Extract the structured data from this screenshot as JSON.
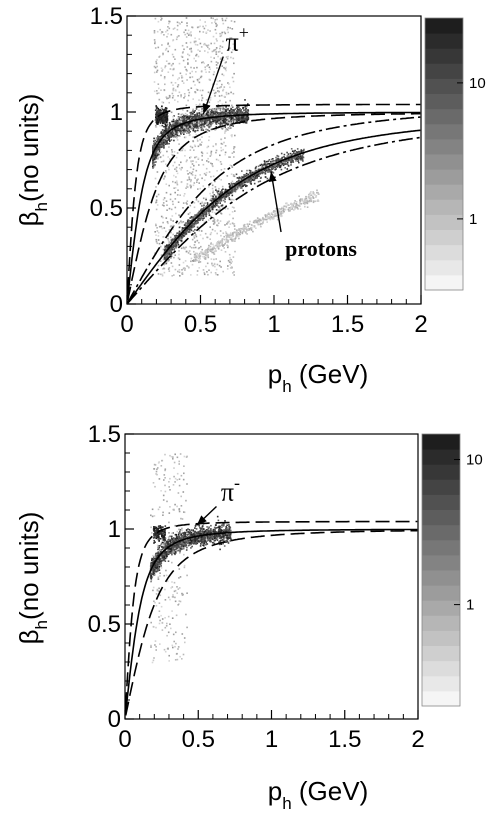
{
  "chart_data": [
    {
      "type": "heatmap",
      "xlabel_main": "p",
      "xlabel_sub": "h",
      "xlabel_unit": " (GeV)",
      "ylabel_main": "β",
      "ylabel_sub": "h",
      "ylabel_unit": "(no units)",
      "xlim": [
        0,
        2
      ],
      "ylim": [
        0,
        1.5
      ],
      "xticks": [
        0,
        0.5,
        1,
        1.5,
        2
      ],
      "xtick_labels": [
        "0",
        "0.5",
        "1",
        "1.5",
        "2"
      ],
      "yticks": [
        0,
        0.5,
        1,
        1.5
      ],
      "ytick_labels": [
        "0",
        "0.5",
        "1",
        "1.5"
      ],
      "colorbar": {
        "scale": "log",
        "ticks": [
          1,
          10
        ],
        "tick_labels": [
          "1",
          "10"
        ],
        "range": [
          0.3,
          30
        ]
      },
      "annotations": [
        {
          "label_main": "π",
          "label_sup": "+",
          "text_x": 0.75,
          "text_y": 1.32,
          "arrow_to": [
            0.52,
            0.99
          ]
        },
        {
          "label_main": "protons",
          "text_x": 1.32,
          "text_y": 0.25,
          "arrow_to": [
            0.98,
            0.69
          ]
        }
      ],
      "bands": [
        {
          "particle": "pion",
          "mass": 0.1396
        },
        {
          "particle": "proton",
          "mass": 0.9383
        }
      ]
    },
    {
      "type": "heatmap",
      "xlabel_main": "p",
      "xlabel_sub": "h",
      "xlabel_unit": " (GeV)",
      "ylabel_main": "β",
      "ylabel_sub": "h",
      "ylabel_unit": "(no units)",
      "xlim": [
        0,
        2
      ],
      "ylim": [
        0,
        1.5
      ],
      "xticks": [
        0,
        0.5,
        1,
        1.5,
        2
      ],
      "xtick_labels": [
        "0",
        "0.5",
        "1",
        "1.5",
        "2"
      ],
      "yticks": [
        0,
        0.5,
        1,
        1.5
      ],
      "ytick_labels": [
        "0",
        "0.5",
        "1",
        "1.5"
      ],
      "colorbar": {
        "scale": "log",
        "ticks": [
          1,
          10
        ],
        "tick_labels": [
          "1",
          "10"
        ],
        "range": [
          0.2,
          15
        ]
      },
      "annotations": [
        {
          "label_main": "π",
          "label_sup": "-",
          "text_x": 0.72,
          "text_y": 1.15,
          "arrow_to": [
            0.49,
            1.02
          ]
        }
      ],
      "bands": [
        {
          "particle": "pion",
          "mass": 0.1396
        }
      ]
    }
  ]
}
